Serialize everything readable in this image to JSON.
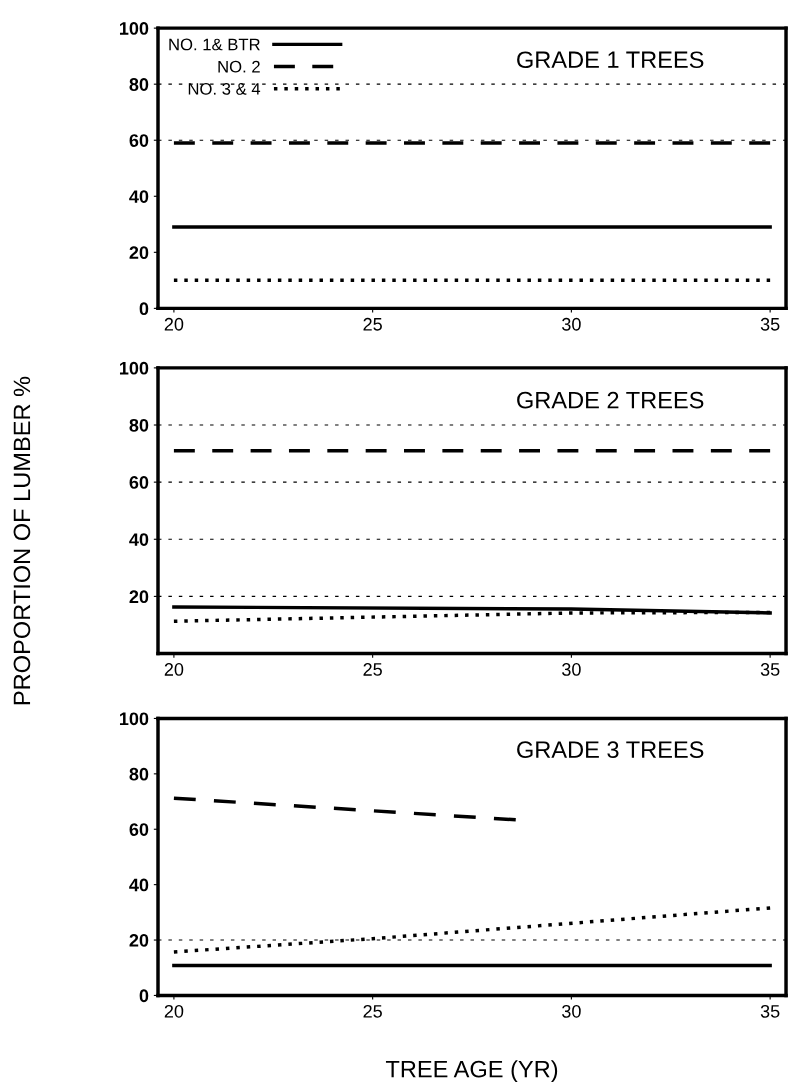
{
  "chart_data": [
    {
      "type": "line",
      "title": "GRADE 1 TREES",
      "xlim": [
        19.6,
        35.4
      ],
      "xticks": [
        20,
        25,
        30,
        35
      ],
      "ylim": [
        0,
        100
      ],
      "yticks": [
        0,
        20,
        40,
        60,
        80,
        100
      ],
      "legend": "top left",
      "series": [
        {
          "name": "NO. 1& BTR",
          "color": "#000000",
          "line_style": "solid",
          "x": [
            20,
            35
          ],
          "values": [
            29,
            29
          ]
        },
        {
          "name": "NO. 2",
          "color": "#000000",
          "line_style": "dashed",
          "x": [
            20,
            35
          ],
          "values": [
            59,
            59
          ]
        },
        {
          "name": "NO. 3 & 4",
          "color": "#000000",
          "line_style": "dotted",
          "x": [
            20,
            35
          ],
          "values": [
            10,
            10
          ]
        }
      ],
      "ref_lines": [
        {
          "axis": "y",
          "value": 80,
          "line_style": "dotted",
          "color": "#000000"
        },
        {
          "axis": "y",
          "value": 60,
          "line_style": "dotted",
          "color": "#000000"
        }
      ]
    },
    {
      "type": "line",
      "title": "GRADE 2 TREES",
      "ylabel": "PROPORTION OF LUMBER %",
      "xlim": [
        19.6,
        35.4
      ],
      "xticks": [
        20,
        25,
        30,
        35
      ],
      "ylim": [
        0,
        100
      ],
      "yticks": [
        20,
        40,
        60,
        80,
        100
      ],
      "series": [
        {
          "color": "#000000",
          "line_style": "solid",
          "x": [
            20,
            30,
            35
          ],
          "values": [
            16.3,
            15.6,
            14.2
          ]
        },
        {
          "color": "#000000",
          "line_style": "dashed",
          "x": [
            20,
            35
          ],
          "values": [
            71,
            71
          ]
        },
        {
          "color": "#000000",
          "line_style": "dotted",
          "x": [
            20,
            30,
            35
          ],
          "values": [
            11.3,
            14.2,
            14.4
          ]
        }
      ],
      "ref_lines": [
        {
          "axis": "y",
          "value": 20,
          "line_style": "dotted",
          "color": "#000000"
        },
        {
          "axis": "y",
          "value": 40,
          "line_style": "dotted",
          "color": "#000000"
        },
        {
          "axis": "y",
          "value": 60,
          "line_style": "dotted",
          "color": "#000000"
        },
        {
          "axis": "y",
          "value": 80,
          "line_style": "dotted",
          "color": "#000000"
        }
      ]
    },
    {
      "type": "line",
      "title": "GRADE 3 TREES",
      "xlabel": "TREE AGE (YR)",
      "xlim": [
        19.6,
        35.4
      ],
      "xticks": [
        20,
        25,
        30,
        35
      ],
      "ylim": [
        0,
        100
      ],
      "yticks": [
        0,
        20,
        40,
        60,
        80,
        100
      ],
      "series": [
        {
          "color": "#000000",
          "line_style": "solid",
          "x": [
            20,
            35
          ],
          "values": [
            10.8,
            10.8
          ]
        },
        {
          "color": "#000000",
          "line_style": "dashed",
          "x": [
            20,
            28.6
          ],
          "values": [
            71.2,
            63.4
          ]
        },
        {
          "color": "#000000",
          "line_style": "dotted",
          "x": [
            20,
            25,
            35
          ],
          "values": [
            15.7,
            20.5,
            31.6
          ]
        }
      ],
      "ref_lines": [
        {
          "axis": "y",
          "value": 20,
          "line_style": "dotted",
          "color": "#000000"
        }
      ]
    }
  ]
}
